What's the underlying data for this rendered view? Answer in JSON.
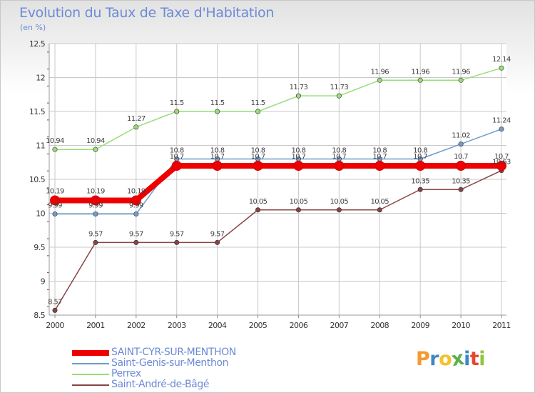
{
  "title": "Evolution du Taux de Taxe d'Habitation",
  "unit_label": "(en %)",
  "colors": {
    "title": "#6c8bd6",
    "grid": "#c9c9c9",
    "axis_tick": "#cc2222"
  },
  "chart_data": {
    "type": "line",
    "title": "Evolution du Taux de Taxe d'Habitation",
    "subtitle": "(en %)",
    "x": [
      "2000",
      "2001",
      "2002",
      "2003",
      "2004",
      "2005",
      "2006",
      "2007",
      "2008",
      "2009",
      "2010",
      "2011"
    ],
    "ylim": [
      8.5,
      12.5
    ],
    "yticks": [
      "8.5",
      "9",
      "9.5",
      "10",
      "10.5",
      "11",
      "11.5",
      "12",
      "12.5"
    ],
    "grid": true,
    "legend_position": "bottom-left",
    "series": [
      {
        "name": "SAINT-CYR-SUR-MENTHON",
        "color": "#ee0000",
        "values": [
          10.19,
          10.19,
          10.19,
          10.7,
          10.7,
          10.7,
          10.7,
          10.7,
          10.7,
          10.7,
          10.7,
          10.7
        ],
        "labels": [
          "10.19",
          "10.19",
          "10.19",
          "10.7",
          "10.7",
          "10.7",
          "10.7",
          "10.7",
          "10.7",
          "10.7",
          "10.7",
          "10.7"
        ]
      },
      {
        "name": "Saint-Genis-sur-Menthon",
        "color": "#6f9ccc",
        "values": [
          9.99,
          9.99,
          9.99,
          10.8,
          10.8,
          10.8,
          10.8,
          10.8,
          10.8,
          10.8,
          11.02,
          11.24
        ],
        "labels": [
          "9.99",
          "9.99",
          "9.99",
          "10.8",
          "10.8",
          "10.8",
          "10.8",
          "10.8",
          "10.8",
          "10.8",
          "11.02",
          "11.24"
        ]
      },
      {
        "name": "Perrex",
        "color": "#99dd77",
        "values": [
          10.94,
          10.94,
          11.27,
          11.5,
          11.5,
          11.5,
          11.73,
          11.73,
          11.96,
          11.96,
          11.96,
          12.14
        ],
        "labels": [
          "10.94",
          "10.94",
          "11.27",
          "11.5",
          "11.5",
          "11.5",
          "11.73",
          "11.73",
          "11.96",
          "11.96",
          "11.96",
          "12.14"
        ]
      },
      {
        "name": "Saint-André-de-Bâgé",
        "color": "#884444",
        "values": [
          8.57,
          9.57,
          9.57,
          9.57,
          9.57,
          10.05,
          10.05,
          10.05,
          10.05,
          10.35,
          10.35,
          10.63
        ],
        "labels": [
          "8.57",
          "9.57",
          "9.57",
          "9.57",
          "9.57",
          "10.05",
          "10.05",
          "10.05",
          "10.05",
          "10.35",
          "10.35",
          "10.63"
        ]
      }
    ]
  },
  "logo": {
    "letters": [
      "P",
      "r",
      "o",
      "x",
      "i",
      "t",
      "i"
    ],
    "colors": [
      "#f29a2e",
      "#3f86c9",
      "#f4c12b",
      "#5bb04b",
      "#3f86c9",
      "#e8452c",
      "#8ec63f"
    ]
  }
}
